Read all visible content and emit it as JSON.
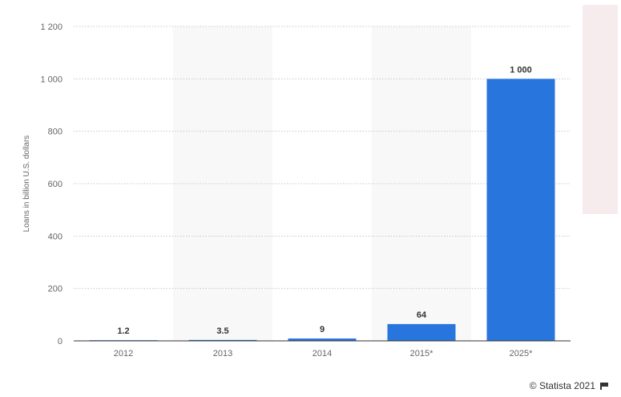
{
  "chart_data": {
    "type": "bar",
    "categories": [
      "2012",
      "2013",
      "2014",
      "2015*",
      "2025*"
    ],
    "values": [
      1.2,
      3.5,
      9,
      64,
      1000
    ],
    "value_labels": [
      "1.2",
      "3.5",
      "9",
      "64",
      "1 000"
    ],
    "ylabel": "Loans in billion U.S. dollars",
    "ylim": [
      0,
      1200
    ],
    "yticks": [
      0,
      200,
      400,
      600,
      800,
      1000,
      1200
    ],
    "ytick_labels": [
      "0",
      "200",
      "400",
      "600",
      "800",
      "1 000",
      "1 200"
    ],
    "grid": true,
    "bar_color": "#2876dd",
    "band_color": "#f8f8f8",
    "grid_color": "#c8c8c8"
  },
  "footer": {
    "credit": "© Statista 2021",
    "flag_icon": "flag-icon"
  }
}
